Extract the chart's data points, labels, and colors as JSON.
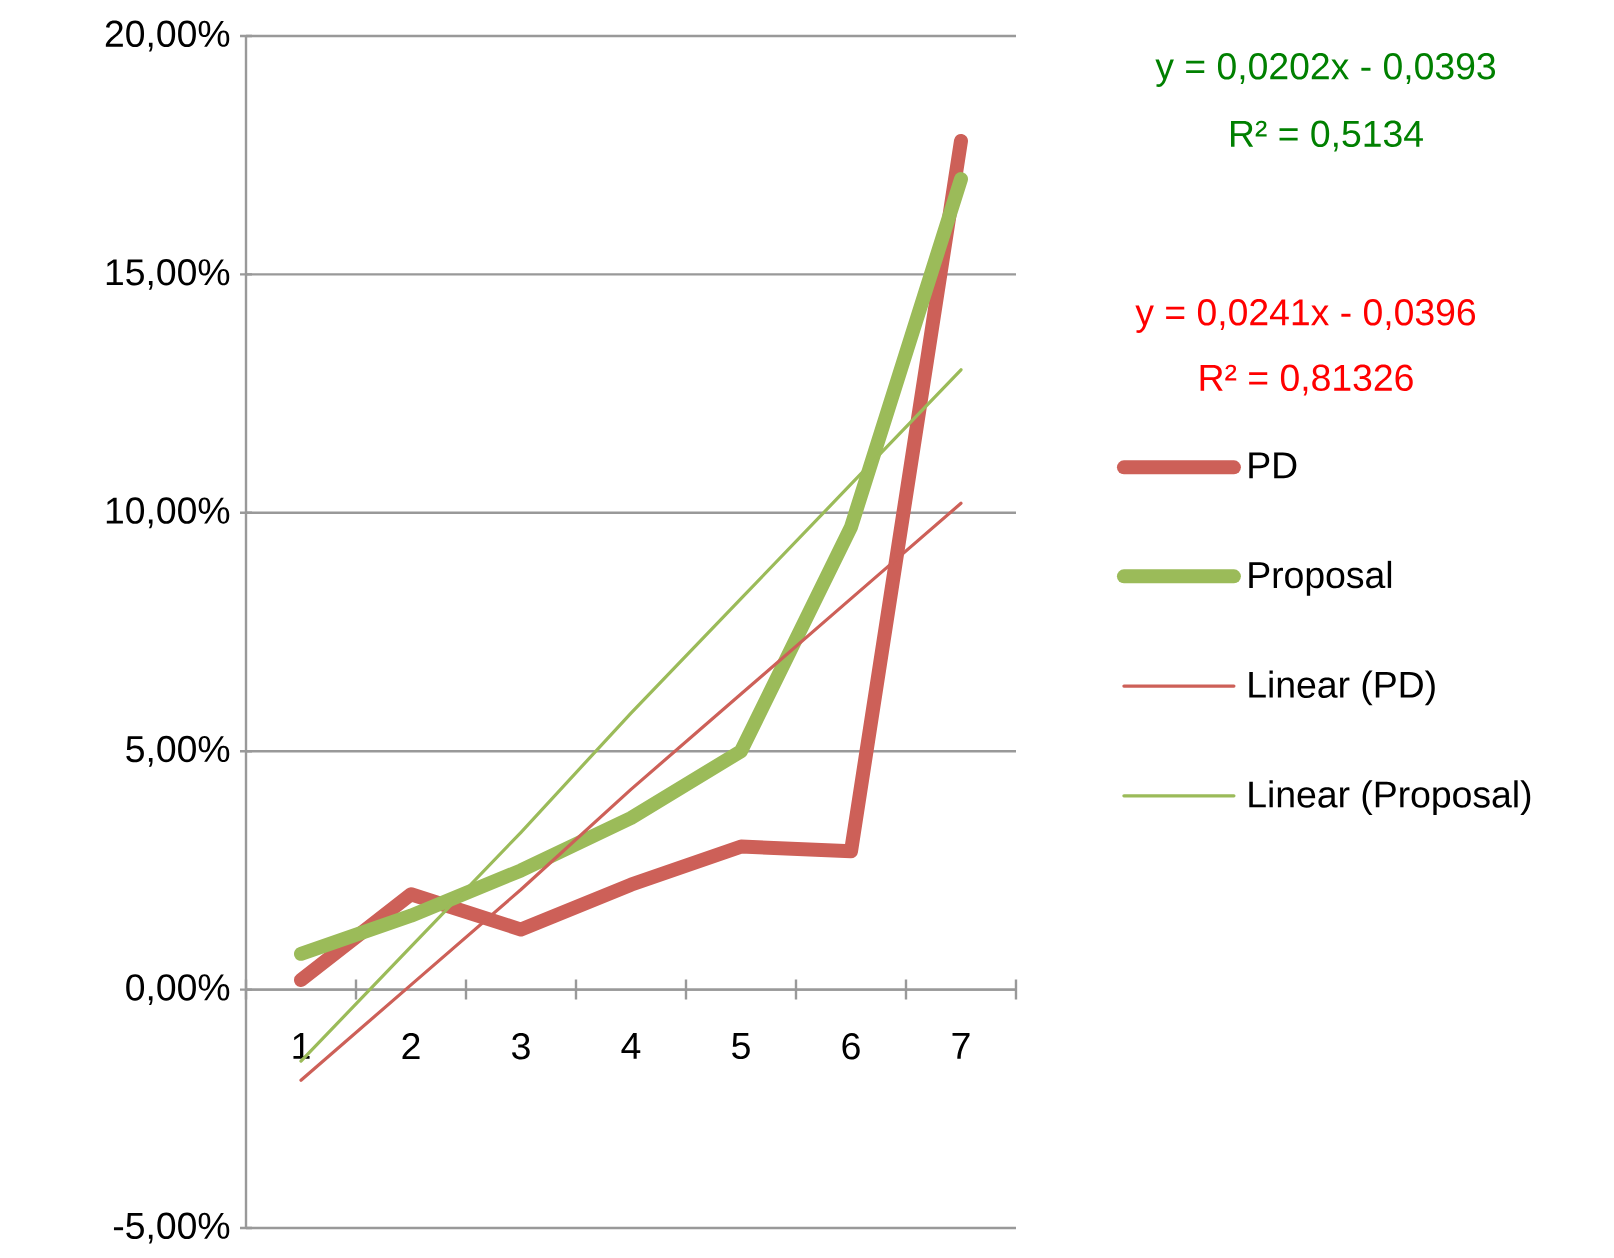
{
  "chart_data": {
    "type": "line",
    "x": [
      1,
      2,
      3,
      4,
      5,
      6,
      7
    ],
    "xlim": [
      0.5,
      7.5
    ],
    "xticks": [
      1,
      2,
      3,
      4,
      5,
      6,
      7
    ],
    "ylim": [
      -5,
      20
    ],
    "yticks": [
      {
        "value": -5,
        "label": "-5,00%"
      },
      {
        "value": 0,
        "label": "0,00%"
      },
      {
        "value": 5,
        "label": "5,00%"
      },
      {
        "value": 10,
        "label": "10,00%"
      },
      {
        "value": 15,
        "label": "15,00%"
      },
      {
        "value": 20,
        "label": "20,00%"
      }
    ],
    "grid": "y",
    "legend": "right",
    "series": [
      {
        "name": "PD",
        "color": "#cd6058",
        "values": [
          0.2,
          2.0,
          1.26,
          2.2,
          3.0,
          2.9,
          17.8
        ]
      },
      {
        "name": "Proposal",
        "color": "#9bbb59",
        "values": [
          0.75,
          1.55,
          2.5,
          3.6,
          5.0,
          9.7,
          17.0
        ]
      },
      {
        "name": "Linear (PD)",
        "type": "line",
        "color": "#cd6058",
        "values": [
          -1.9,
          0.1,
          2.1,
          4.2,
          6.2,
          8.2,
          10.2
        ]
      },
      {
        "name": "Linear (Proposal)",
        "type": "line",
        "color": "#9bbb59",
        "values": [
          -1.5,
          0.9,
          3.3,
          5.8,
          8.2,
          10.6,
          13.0
        ]
      }
    ],
    "annotations": [
      "y = 0,0202x - 0,0393",
      "R² = 0,5134",
      "y = 0,0241x - 0,0396",
      "R² = 0,81326"
    ]
  }
}
